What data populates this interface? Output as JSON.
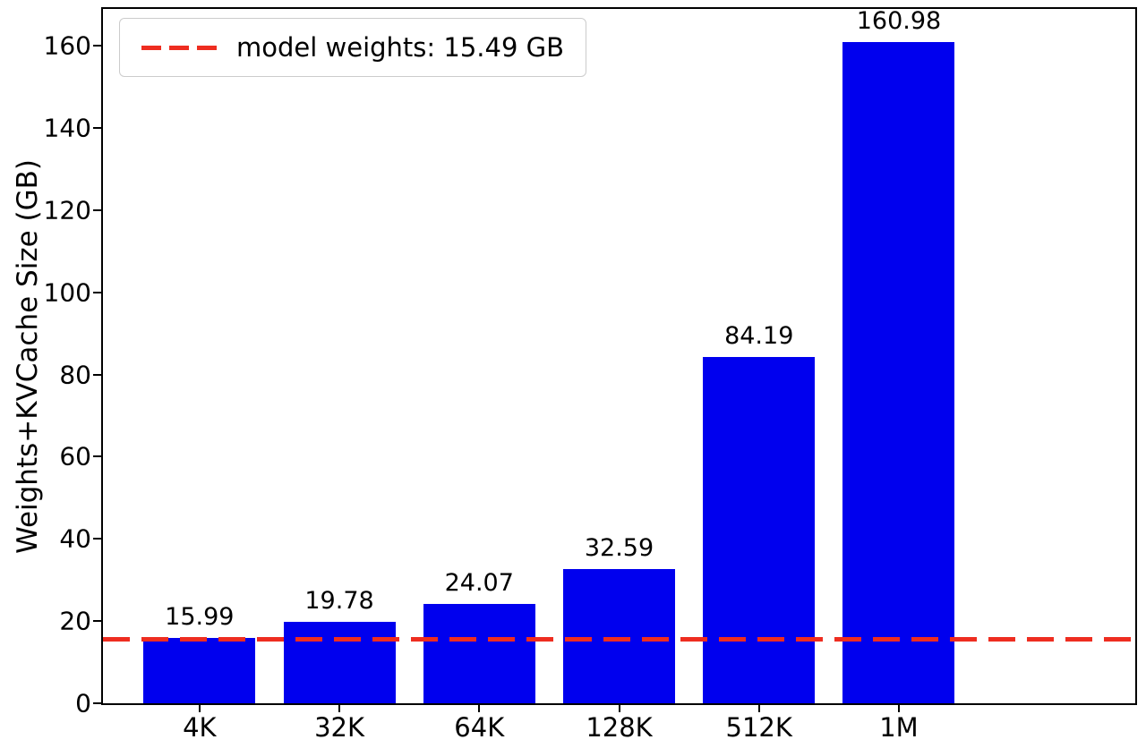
{
  "chart_data": {
    "type": "bar",
    "title": "",
    "categories": [
      "4K",
      "32K",
      "64K",
      "128K",
      "512K",
      "1M"
    ],
    "values": [
      15.99,
      19.78,
      24.07,
      32.59,
      84.19,
      160.98
    ],
    "xlabel": "",
    "ylabel": "Weights+KVCache Size (GB)",
    "yticks": [
      0,
      20,
      40,
      60,
      80,
      100,
      120,
      140,
      160
    ],
    "ylim": [
      0,
      169
    ],
    "bar_color": "#0000ee",
    "grid": false,
    "legend_position": "upper left",
    "reference_line": {
      "value": 15.49,
      "label": "model weights: 15.49 GB",
      "color": "#ee2d20",
      "style": "dashed"
    }
  }
}
